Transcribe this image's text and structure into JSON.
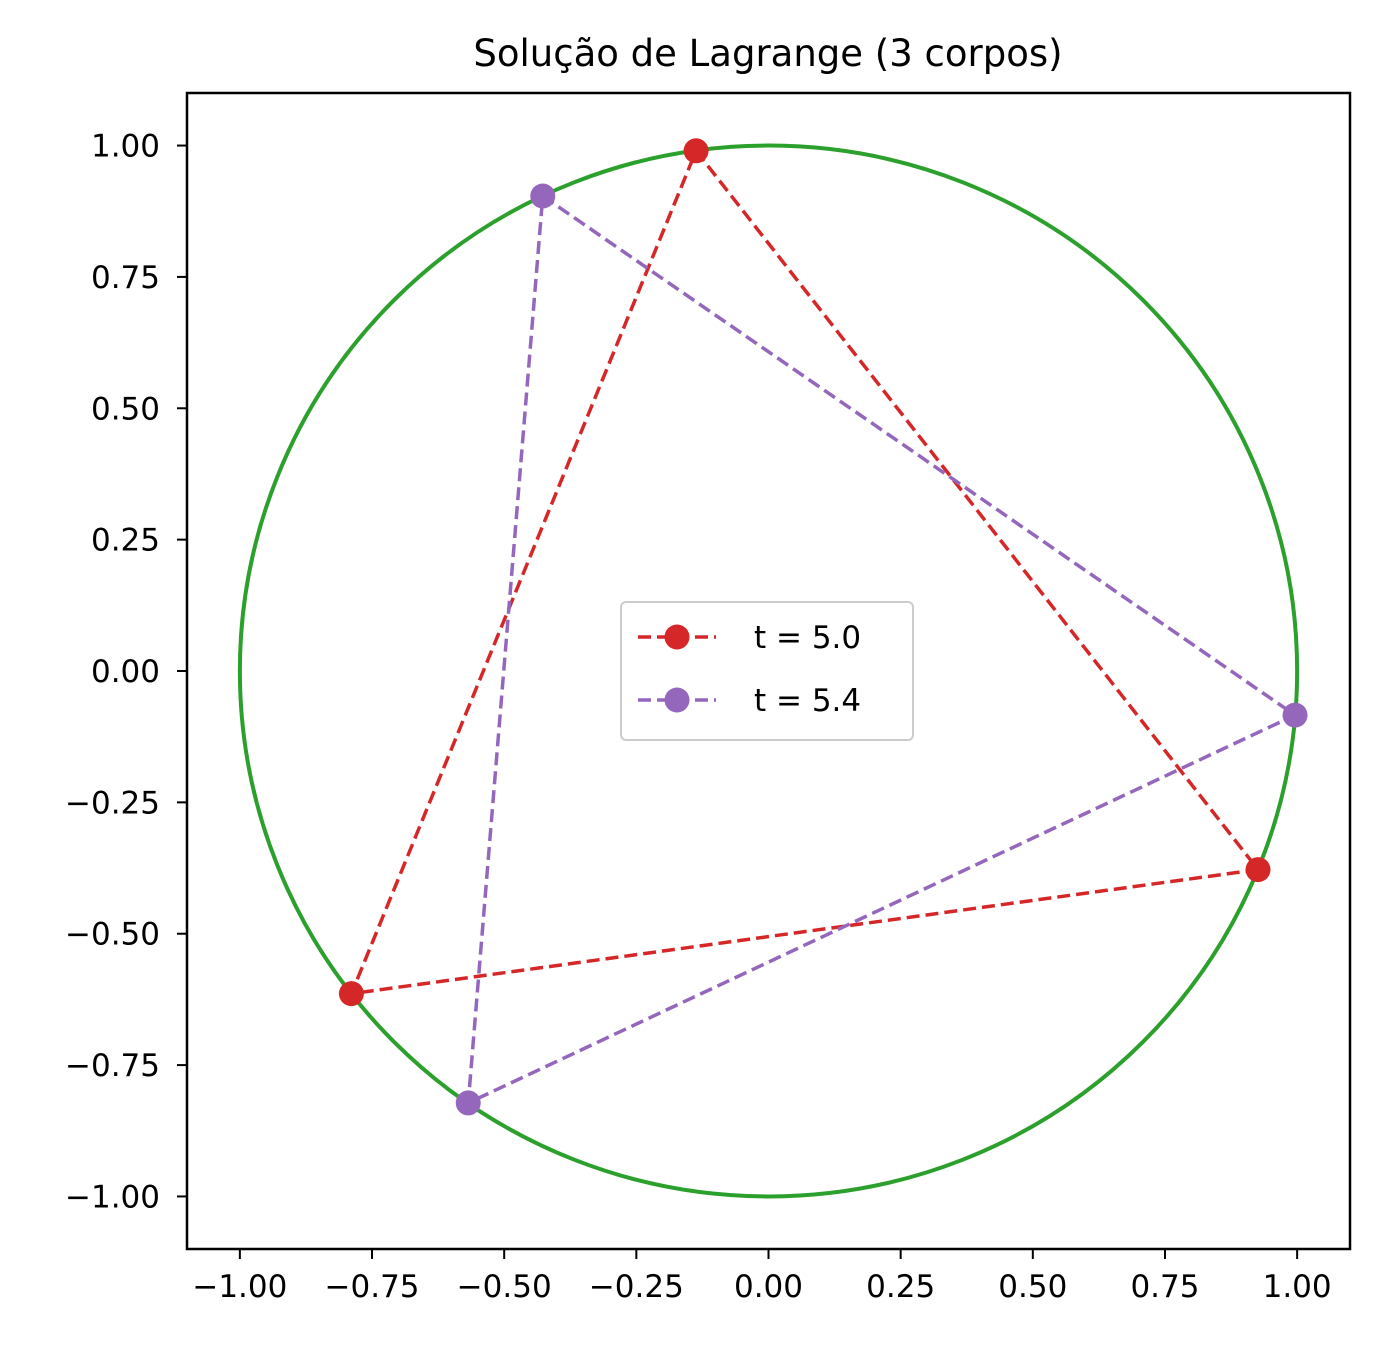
{
  "chart_data": {
    "type": "line",
    "title": "Solução de Lagrange (3 corpos)",
    "xlabel": "",
    "ylabel": "",
    "xlim": [
      -1.1,
      1.1
    ],
    "ylim": [
      -1.1,
      1.1
    ],
    "x_ticks": [
      -1.0,
      -0.75,
      -0.5,
      -0.25,
      0.0,
      0.25,
      0.5,
      0.75,
      1.0
    ],
    "y_ticks": [
      -1.0,
      -0.75,
      -0.5,
      -0.25,
      0.0,
      0.25,
      0.5,
      0.75,
      1.0
    ],
    "x_tick_labels": [
      "−1.00",
      "−0.75",
      "−0.50",
      "−0.25",
      "0.00",
      "0.25",
      "0.50",
      "0.75",
      "1.00"
    ],
    "y_tick_labels": [
      "−1.00",
      "−0.75",
      "−0.50",
      "−0.25",
      "0.00",
      "0.25",
      "0.50",
      "0.75",
      "1.00"
    ],
    "grid": false,
    "legend_position": "center",
    "orbit": {
      "shape": "circle",
      "center": [
        0.0,
        0.0
      ],
      "radius": 1.0,
      "color": "#2ca02c"
    },
    "series": [
      {
        "name": "t = 5.0",
        "color": "#d62728",
        "points": [
          [
            -0.137,
            0.99
          ],
          [
            0.926,
            -0.378
          ],
          [
            -0.789,
            -0.614
          ]
        ]
      },
      {
        "name": "t = 5.4",
        "color": "#9467bd",
        "points": [
          [
            -0.427,
            0.904
          ],
          [
            0.996,
            -0.084
          ],
          [
            -0.568,
            -0.822
          ]
        ]
      }
    ]
  }
}
